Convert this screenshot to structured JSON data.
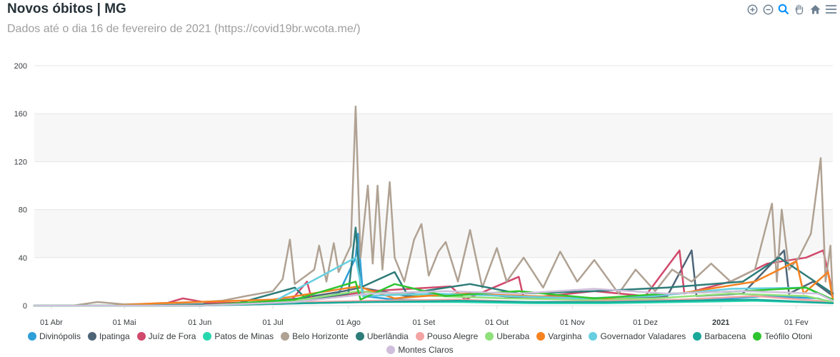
{
  "header": {
    "title": "Novos óbitos | MG",
    "subtitle": "Dados até o dia 16 de fevereiro de 2021 (https://covid19br.wcota.me/)"
  },
  "toolbar": {
    "icons": [
      "zoom-in-icon",
      "zoom-out-icon",
      "selection-zoom-icon",
      "pan-hand-icon",
      "home-icon",
      "menu-icon"
    ]
  },
  "chart_data": {
    "type": "line",
    "title": "Novos óbitos | MG",
    "subtitle": "Dados até o dia 16 de fevereiro de 2021 (https://covid19br.wcota.me/)",
    "x_range": [
      "2020-03-25",
      "2021-02-16"
    ],
    "ylim": [
      0,
      200
    ],
    "y_ticks": [
      0,
      40,
      80,
      120,
      160,
      200
    ],
    "x_ticks": [
      {
        "date": "2020-04-01",
        "label": "01 Abr",
        "bold": false
      },
      {
        "date": "2020-05-01",
        "label": "01 Mai",
        "bold": false
      },
      {
        "date": "2020-06-01",
        "label": "01 Jun",
        "bold": false
      },
      {
        "date": "2020-07-01",
        "label": "01 Jul",
        "bold": false
      },
      {
        "date": "2020-08-01",
        "label": "01 Ago",
        "bold": false
      },
      {
        "date": "2020-09-01",
        "label": "01 Set",
        "bold": false
      },
      {
        "date": "2020-10-01",
        "label": "01 Out",
        "bold": false
      },
      {
        "date": "2020-11-01",
        "label": "01 Nov",
        "bold": false
      },
      {
        "date": "2020-12-01",
        "label": "01 Dez",
        "bold": false
      },
      {
        "date": "2021-01-01",
        "label": "2021",
        "bold": true
      },
      {
        "date": "2021-02-01",
        "label": "01 Fev",
        "bold": false
      }
    ],
    "grid": true,
    "legend_position": "bottom",
    "series": [
      {
        "name": "Divinópolis",
        "color": "#2e9fd8",
        "points": [
          [
            "2020-03-25",
            0
          ],
          [
            "2020-05-01",
            0
          ],
          [
            "2020-06-15",
            1
          ],
          [
            "2020-07-15",
            4
          ],
          [
            "2020-07-28",
            10
          ],
          [
            "2020-08-04",
            40
          ],
          [
            "2020-08-05",
            60
          ],
          [
            "2020-08-07",
            8
          ],
          [
            "2020-08-20",
            5
          ],
          [
            "2020-09-15",
            4
          ],
          [
            "2020-10-10",
            3
          ],
          [
            "2020-11-10",
            3
          ],
          [
            "2020-12-05",
            4
          ],
          [
            "2021-01-05",
            6
          ],
          [
            "2021-01-20",
            8
          ],
          [
            "2021-02-10",
            6
          ],
          [
            "2021-02-16",
            2
          ]
        ]
      },
      {
        "name": "Ipatinga",
        "color": "#4e6477",
        "points": [
          [
            "2020-03-25",
            0
          ],
          [
            "2020-05-10",
            0
          ],
          [
            "2020-06-20",
            2
          ],
          [
            "2020-07-12",
            6
          ],
          [
            "2020-07-30",
            12
          ],
          [
            "2020-08-06",
            15
          ],
          [
            "2020-08-25",
            8
          ],
          [
            "2020-09-20",
            10
          ],
          [
            "2020-10-15",
            6
          ],
          [
            "2020-11-15",
            5
          ],
          [
            "2020-12-10",
            8
          ],
          [
            "2020-12-20",
            46
          ],
          [
            "2020-12-22",
            8
          ],
          [
            "2021-01-10",
            10
          ],
          [
            "2021-01-27",
            46
          ],
          [
            "2021-01-29",
            10
          ],
          [
            "2021-02-08",
            20
          ],
          [
            "2021-02-16",
            8
          ]
        ]
      },
      {
        "name": "Juíz de Fora",
        "color": "#d1496b",
        "points": [
          [
            "2020-03-25",
            0
          ],
          [
            "2020-05-15",
            0
          ],
          [
            "2020-05-25",
            6
          ],
          [
            "2020-06-05",
            2
          ],
          [
            "2020-07-08",
            3
          ],
          [
            "2020-07-15",
            20
          ],
          [
            "2020-07-17",
            5
          ],
          [
            "2020-08-10",
            12
          ],
          [
            "2020-09-12",
            16
          ],
          [
            "2020-09-18",
            5
          ],
          [
            "2020-10-10",
            24
          ],
          [
            "2020-10-12",
            6
          ],
          [
            "2020-11-10",
            12
          ],
          [
            "2020-12-01",
            8
          ],
          [
            "2020-12-15",
            46
          ],
          [
            "2020-12-17",
            10
          ],
          [
            "2021-01-05",
            20
          ],
          [
            "2021-01-20",
            35
          ],
          [
            "2021-02-05",
            40
          ],
          [
            "2021-02-12",
            46
          ],
          [
            "2021-02-16",
            10
          ]
        ]
      },
      {
        "name": "Patos de Minas",
        "color": "#26d7ae",
        "points": [
          [
            "2020-03-25",
            0
          ],
          [
            "2020-06-01",
            0
          ],
          [
            "2020-07-15",
            2
          ],
          [
            "2020-08-10",
            3
          ],
          [
            "2020-09-15",
            3
          ],
          [
            "2020-10-15",
            2
          ],
          [
            "2020-11-15",
            2
          ],
          [
            "2020-12-15",
            3
          ],
          [
            "2021-01-15",
            4
          ],
          [
            "2021-02-16",
            2
          ]
        ]
      },
      {
        "name": "Belo Horizonte",
        "color": "#b0a293",
        "points": [
          [
            "2020-03-25",
            0
          ],
          [
            "2020-04-10",
            0
          ],
          [
            "2020-04-20",
            3
          ],
          [
            "2020-05-01",
            1
          ],
          [
            "2020-05-20",
            2
          ],
          [
            "2020-06-01",
            3
          ],
          [
            "2020-06-10",
            4
          ],
          [
            "2020-06-20",
            8
          ],
          [
            "2020-07-01",
            12
          ],
          [
            "2020-07-05",
            22
          ],
          [
            "2020-07-08",
            55
          ],
          [
            "2020-07-10",
            18
          ],
          [
            "2020-07-18",
            30
          ],
          [
            "2020-07-20",
            50
          ],
          [
            "2020-07-23",
            20
          ],
          [
            "2020-07-26",
            52
          ],
          [
            "2020-07-28",
            28
          ],
          [
            "2020-08-02",
            50
          ],
          [
            "2020-08-04",
            166
          ],
          [
            "2020-08-06",
            40
          ],
          [
            "2020-08-09",
            100
          ],
          [
            "2020-08-11",
            35
          ],
          [
            "2020-08-13",
            100
          ],
          [
            "2020-08-15",
            30
          ],
          [
            "2020-08-18",
            103
          ],
          [
            "2020-08-20",
            40
          ],
          [
            "2020-08-24",
            20
          ],
          [
            "2020-08-28",
            55
          ],
          [
            "2020-08-31",
            68
          ],
          [
            "2020-09-03",
            25
          ],
          [
            "2020-09-07",
            45
          ],
          [
            "2020-09-10",
            53
          ],
          [
            "2020-09-15",
            20
          ],
          [
            "2020-09-20",
            63
          ],
          [
            "2020-09-25",
            15
          ],
          [
            "2020-10-01",
            48
          ],
          [
            "2020-10-05",
            20
          ],
          [
            "2020-10-12",
            40
          ],
          [
            "2020-10-20",
            15
          ],
          [
            "2020-10-27",
            45
          ],
          [
            "2020-11-03",
            20
          ],
          [
            "2020-11-10",
            38
          ],
          [
            "2020-11-20",
            10
          ],
          [
            "2020-11-27",
            30
          ],
          [
            "2020-12-05",
            12
          ],
          [
            "2020-12-12",
            30
          ],
          [
            "2020-12-20",
            20
          ],
          [
            "2020-12-28",
            35
          ],
          [
            "2021-01-05",
            20
          ],
          [
            "2021-01-15",
            30
          ],
          [
            "2021-01-22",
            85
          ],
          [
            "2021-01-24",
            20
          ],
          [
            "2021-01-26",
            80
          ],
          [
            "2021-01-29",
            30
          ],
          [
            "2021-02-02",
            40
          ],
          [
            "2021-02-07",
            60
          ],
          [
            "2021-02-11",
            123
          ],
          [
            "2021-02-13",
            20
          ],
          [
            "2021-02-15",
            50
          ],
          [
            "2021-02-16",
            5
          ]
        ]
      },
      {
        "name": "Uberlândia",
        "color": "#2d7c79",
        "points": [
          [
            "2020-03-25",
            0
          ],
          [
            "2020-05-01",
            0
          ],
          [
            "2020-06-15",
            1
          ],
          [
            "2020-07-10",
            15
          ],
          [
            "2020-07-15",
            5
          ],
          [
            "2020-08-01",
            10
          ],
          [
            "2020-08-04",
            65
          ],
          [
            "2020-08-06",
            15
          ],
          [
            "2020-08-20",
            28
          ],
          [
            "2020-08-25",
            10
          ],
          [
            "2020-09-20",
            18
          ],
          [
            "2020-10-10",
            10
          ],
          [
            "2020-11-10",
            12
          ],
          [
            "2020-12-10",
            15
          ],
          [
            "2021-01-10",
            20
          ],
          [
            "2021-01-25",
            40
          ],
          [
            "2021-02-05",
            25
          ],
          [
            "2021-02-16",
            10
          ]
        ]
      },
      {
        "name": "Pouso Alegre",
        "color": "#f4a3a3",
        "points": [
          [
            "2020-03-25",
            0
          ],
          [
            "2020-06-01",
            0
          ],
          [
            "2020-07-15",
            3
          ],
          [
            "2020-08-10",
            4
          ],
          [
            "2020-09-15",
            5
          ],
          [
            "2020-10-15",
            3
          ],
          [
            "2020-11-15",
            4
          ],
          [
            "2020-12-15",
            5
          ],
          [
            "2021-01-15",
            8
          ],
          [
            "2021-02-16",
            3
          ]
        ]
      },
      {
        "name": "Uberaba",
        "color": "#8fe07a",
        "points": [
          [
            "2020-03-25",
            0
          ],
          [
            "2020-06-01",
            0
          ],
          [
            "2020-07-10",
            4
          ],
          [
            "2020-08-05",
            12
          ],
          [
            "2020-09-05",
            8
          ],
          [
            "2020-10-05",
            6
          ],
          [
            "2020-11-05",
            5
          ],
          [
            "2020-12-05",
            6
          ],
          [
            "2021-01-05",
            10
          ],
          [
            "2021-02-05",
            8
          ],
          [
            "2021-02-16",
            3
          ]
        ]
      },
      {
        "name": "Varginha",
        "color": "#f58220",
        "points": [
          [
            "2020-03-25",
            0
          ],
          [
            "2020-04-25",
            0
          ],
          [
            "2020-05-15",
            2
          ],
          [
            "2020-07-01",
            5
          ],
          [
            "2020-08-05",
            16
          ],
          [
            "2020-08-20",
            6
          ],
          [
            "2020-09-15",
            10
          ],
          [
            "2020-10-15",
            8
          ],
          [
            "2020-11-15",
            6
          ],
          [
            "2020-12-15",
            10
          ],
          [
            "2021-01-15",
            20
          ],
          [
            "2021-02-01",
            37
          ],
          [
            "2021-02-04",
            10
          ],
          [
            "2021-02-14",
            28
          ],
          [
            "2021-02-16",
            5
          ]
        ]
      },
      {
        "name": "Governador Valadares",
        "color": "#66cfe0",
        "points": [
          [
            "2020-03-25",
            0
          ],
          [
            "2020-06-01",
            0
          ],
          [
            "2020-07-01",
            3
          ],
          [
            "2020-08-04",
            40
          ],
          [
            "2020-08-07",
            8
          ],
          [
            "2020-09-05",
            10
          ],
          [
            "2020-10-05",
            8
          ],
          [
            "2020-11-05",
            6
          ],
          [
            "2020-12-05",
            8
          ],
          [
            "2021-01-05",
            14
          ],
          [
            "2021-02-05",
            15
          ],
          [
            "2021-02-16",
            4
          ]
        ]
      },
      {
        "name": "Barbacena",
        "color": "#1aa89a",
        "points": [
          [
            "2020-03-25",
            0
          ],
          [
            "2020-06-01",
            0
          ],
          [
            "2020-07-15",
            2
          ],
          [
            "2020-08-10",
            3
          ],
          [
            "2020-09-15",
            4
          ],
          [
            "2020-10-15",
            3
          ],
          [
            "2020-11-15",
            3
          ],
          [
            "2020-12-15",
            4
          ],
          [
            "2021-01-15",
            5
          ],
          [
            "2021-02-16",
            2
          ]
        ]
      },
      {
        "name": "Teófilo Otoni",
        "color": "#2fc42f",
        "points": [
          [
            "2020-03-25",
            0
          ],
          [
            "2020-06-01",
            0
          ],
          [
            "2020-07-10",
            5
          ],
          [
            "2020-08-04",
            20
          ],
          [
            "2020-08-06",
            5
          ],
          [
            "2020-08-20",
            18
          ],
          [
            "2020-09-10",
            8
          ],
          [
            "2020-10-10",
            12
          ],
          [
            "2020-11-10",
            6
          ],
          [
            "2020-12-10",
            10
          ],
          [
            "2021-01-10",
            12
          ],
          [
            "2021-02-05",
            15
          ],
          [
            "2021-02-16",
            5
          ]
        ]
      },
      {
        "name": "Montes Claros",
        "color": "#cfbfdc",
        "points": [
          [
            "2020-03-25",
            0
          ],
          [
            "2020-06-01",
            0
          ],
          [
            "2020-07-10",
            3
          ],
          [
            "2020-08-10",
            10
          ],
          [
            "2020-09-10",
            12
          ],
          [
            "2020-10-10",
            10
          ],
          [
            "2020-11-10",
            14
          ],
          [
            "2020-12-10",
            10
          ],
          [
            "2021-01-10",
            12
          ],
          [
            "2021-02-10",
            10
          ],
          [
            "2021-02-16",
            4
          ]
        ]
      }
    ]
  }
}
